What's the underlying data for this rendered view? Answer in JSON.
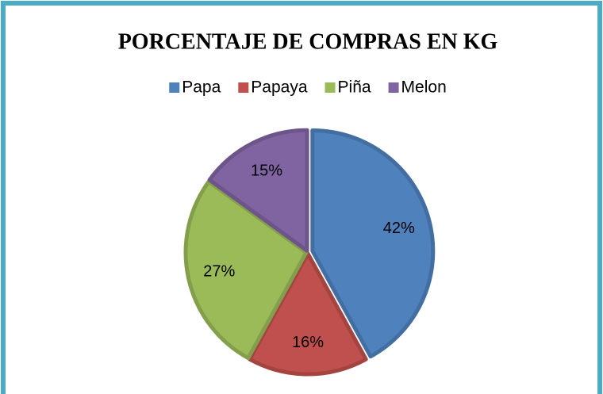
{
  "chart_data": {
    "type": "pie",
    "title": "PORCENTAJE DE COMPRAS EN KG",
    "categories": [
      "Papa",
      "Papaya",
      "Piña",
      "Melon"
    ],
    "values": [
      42,
      16,
      27,
      15
    ],
    "value_labels": [
      "42%",
      "16%",
      "27%",
      "15%"
    ],
    "colors": [
      "#4f81bd",
      "#c0504d",
      "#9bbb59",
      "#8064a2"
    ],
    "legend": "top"
  }
}
